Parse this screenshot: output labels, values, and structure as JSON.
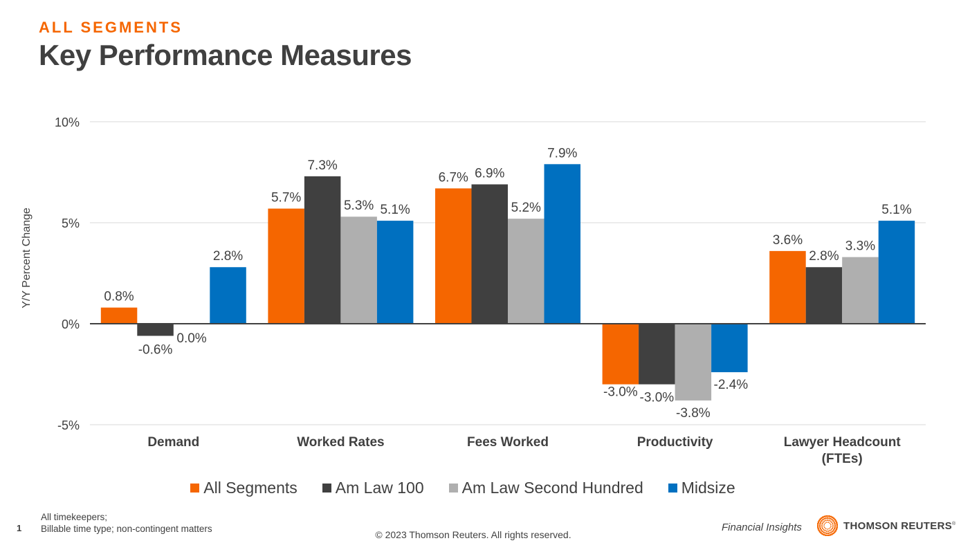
{
  "header": {
    "eyebrow": "ALL SEGMENTS",
    "title": "Key Performance Measures"
  },
  "colors": {
    "accent": "#f56600",
    "series": [
      "#f56600",
      "#404040",
      "#afafaf",
      "#0070c0"
    ]
  },
  "chart_data": {
    "type": "bar",
    "title": "Key Performance Measures",
    "xlabel": "",
    "ylabel": "Y/Y Percent Change",
    "ylim": [
      -5,
      10
    ],
    "yticks": [
      10,
      5,
      0,
      -5
    ],
    "ytick_labels": [
      "10%",
      "5%",
      "0%",
      "-5%"
    ],
    "grid": true,
    "legend_position": "bottom",
    "categories": [
      "Demand",
      "Worked Rates",
      "Fees Worked",
      "Productivity",
      "Lawyer Headcount (FTEs)"
    ],
    "category_lines": [
      [
        "Demand"
      ],
      [
        "Worked Rates"
      ],
      [
        "Fees Worked"
      ],
      [
        "Productivity"
      ],
      [
        "Lawyer Headcount",
        "(FTEs)"
      ]
    ],
    "series": [
      {
        "name": "All Segments",
        "color": "#f56600",
        "values": [
          0.8,
          5.7,
          6.7,
          -3.0,
          3.6
        ],
        "labels": [
          "0.8%",
          "5.7%",
          "6.7%",
          "-3.0%",
          "3.6%"
        ]
      },
      {
        "name": "Am Law 100",
        "color": "#404040",
        "values": [
          -0.6,
          7.3,
          6.9,
          -3.0,
          2.8
        ],
        "labels": [
          "-0.6%",
          "7.3%",
          "6.9%",
          "-3.0%",
          "2.8%"
        ]
      },
      {
        "name": "Am Law Second Hundred",
        "color": "#afafaf",
        "values": [
          0.0,
          5.3,
          5.2,
          -3.8,
          3.3
        ],
        "labels": [
          "0.0%",
          "5.3%",
          "5.2%",
          "-3.8%",
          "3.3%"
        ]
      },
      {
        "name": "Midsize",
        "color": "#0070c0",
        "values": [
          2.8,
          5.1,
          7.9,
          -2.4,
          5.1
        ],
        "labels": [
          "2.8%",
          "5.1%",
          "7.9%",
          "-2.4%",
          "5.1%"
        ]
      }
    ]
  },
  "footer": {
    "page_number": "1",
    "note_line1": "All timekeepers;",
    "note_line2": "Billable time type; non-contingent matters",
    "copyright": "© 2023 Thomson Reuters. All rights reserved.",
    "section": "Financial Insights",
    "brand": "THOMSON REUTERS",
    "brand_mark": "®"
  }
}
